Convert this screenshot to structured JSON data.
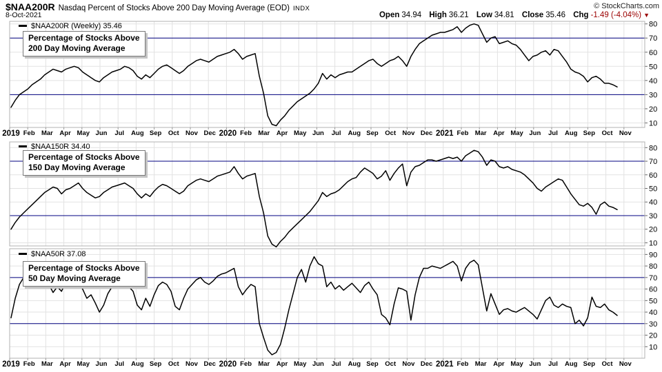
{
  "header": {
    "symbol": "$NAA200R",
    "title": "Nasdaq Percent of Stocks Above 200 Day Moving Average (EOD)",
    "exchange": "INDX",
    "copyright": "© StockCharts.com",
    "date": "8-Oct-2021",
    "quote": {
      "open_label": "Open",
      "open": "34.94",
      "high_label": "High",
      "high": "36.21",
      "low_label": "Low",
      "low": "34.81",
      "close_label": "Close",
      "close": "35.46",
      "chg_label": "Chg",
      "chg": "-1.49 (-4.04%)"
    }
  },
  "colors": {
    "series_line": "#000000",
    "threshold_line": "#000080",
    "grid": "#e2e2e2",
    "panel_border": "#b0b0b0",
    "negative_change": "#9b0000"
  },
  "axis": {
    "months": [
      "2019",
      "Feb",
      "Mar",
      "Apr",
      "May",
      "Jun",
      "Jul",
      "Aug",
      "Sep",
      "Oct",
      "Nov",
      "Dec",
      "2020",
      "Feb",
      "Mar",
      "Apr",
      "May",
      "Jun",
      "Jul",
      "Aug",
      "Sep",
      "Oct",
      "Nov",
      "Dec",
      "2021",
      "Feb",
      "Mar",
      "Apr",
      "May",
      "Jun",
      "Jul",
      "Aug",
      "Sep",
      "Oct",
      "Nov"
    ]
  },
  "chart_data": [
    {
      "type": "line",
      "symbol": "$NAA200R",
      "legend": "$NAA200R (Weekly) 35.46",
      "last_value": 35.46,
      "annotation": [
        "Percentage of Stocks Above",
        "200 Day Moving Average"
      ],
      "yticks": [
        80,
        70,
        60,
        50,
        40,
        30,
        20,
        10
      ],
      "hlines": [
        70,
        30
      ],
      "ylim": [
        6.8,
        81.8
      ],
      "frequency": "weekly",
      "x_start": "Jan-2019",
      "x_end": "8-Oct-2021",
      "values": [
        21,
        26,
        30,
        32,
        34,
        37,
        39,
        41,
        44,
        46,
        48,
        47,
        46,
        48,
        49,
        50,
        49,
        46,
        44,
        42,
        40,
        39,
        42,
        44,
        46,
        47,
        48,
        50,
        49,
        47,
        43,
        41,
        44,
        42,
        45,
        48,
        50,
        51,
        49,
        47,
        45,
        47,
        50,
        52,
        54,
        55,
        54,
        53,
        55,
        57,
        58,
        59,
        60,
        62,
        59,
        55,
        57,
        58,
        59,
        43,
        31,
        15,
        9,
        8,
        12,
        15,
        19,
        22,
        25,
        27,
        29,
        31,
        34,
        38,
        45,
        41,
        44,
        42,
        44,
        45,
        46,
        46,
        48,
        50,
        52,
        54,
        55,
        52,
        50,
        52,
        54,
        55,
        57,
        54,
        50,
        57,
        62,
        66,
        68,
        70,
        72,
        73,
        74,
        74,
        75,
        76,
        78,
        74,
        77,
        79,
        80,
        79,
        73,
        67,
        70,
        71,
        66,
        67,
        68,
        66,
        65,
        62,
        58,
        54,
        57,
        58,
        60,
        61,
        58,
        62,
        61,
        57,
        53,
        48,
        46,
        45,
        43,
        39,
        42,
        43,
        41,
        38,
        38,
        37,
        35.46
      ]
    },
    {
      "type": "line",
      "symbol": "$NAA150R",
      "legend": "$NAA150R 34.40",
      "last_value": 34.4,
      "annotation": [
        "Percentage of Stocks Above",
        "150 Day Moving Average"
      ],
      "yticks": [
        80,
        70,
        60,
        50,
        40,
        30,
        20,
        10
      ],
      "hlines": [
        70,
        30
      ],
      "ylim": [
        7.7,
        84.2
      ],
      "frequency": "weekly",
      "x_start": "Jan-2019",
      "x_end": "8-Oct-2021",
      "values": [
        20,
        25,
        29,
        32,
        35,
        38,
        41,
        44,
        47,
        49,
        51,
        50,
        46,
        49,
        50,
        52,
        54,
        50,
        47,
        45,
        43,
        44,
        47,
        49,
        51,
        52,
        53,
        54,
        52,
        50,
        46,
        43,
        46,
        44,
        48,
        51,
        53,
        52,
        50,
        48,
        46,
        48,
        52,
        54,
        56,
        57,
        56,
        55,
        57,
        59,
        60,
        61,
        62,
        66,
        61,
        57,
        59,
        60,
        61,
        44,
        32,
        15,
        9,
        7,
        11,
        14,
        18,
        21,
        24,
        27,
        30,
        33,
        37,
        41,
        47,
        44,
        46,
        47,
        49,
        52,
        55,
        57,
        58,
        62,
        65,
        63,
        61,
        57,
        59,
        63,
        56,
        61,
        65,
        68,
        52,
        62,
        66,
        67,
        69,
        71,
        71,
        70,
        71,
        72,
        73,
        72,
        73,
        70,
        74,
        76,
        78,
        77,
        73,
        67,
        71,
        70,
        66,
        65,
        66,
        64,
        63,
        62,
        60,
        57,
        54,
        50,
        48,
        51,
        53,
        55,
        57,
        56,
        51,
        46,
        42,
        38,
        37,
        39,
        36,
        31,
        38,
        40,
        37,
        36,
        34.4
      ]
    },
    {
      "type": "line",
      "symbol": "$NAA50R",
      "legend": "$NAA50R 37.08",
      "last_value": 37.08,
      "annotation": [
        "Percentage of Stocks Above",
        "50 Day Moving Average"
      ],
      "yticks": [
        90,
        80,
        70,
        60,
        50,
        40,
        30,
        20,
        10
      ],
      "hlines": [
        70,
        30
      ],
      "ylim": [
        0,
        95
      ],
      "frequency": "weekly",
      "x_start": "Jan-2019",
      "x_end": "8-Oct-2021",
      "values": [
        35,
        52,
        64,
        70,
        72,
        70,
        73,
        75,
        72,
        64,
        57,
        62,
        58,
        66,
        68,
        64,
        66,
        60,
        52,
        55,
        48,
        40,
        46,
        56,
        62,
        66,
        64,
        66,
        62,
        58,
        46,
        42,
        52,
        45,
        55,
        63,
        66,
        64,
        58,
        45,
        42,
        52,
        60,
        64,
        68,
        70,
        66,
        64,
        67,
        71,
        73,
        74,
        76,
        78,
        62,
        55,
        60,
        64,
        62,
        30,
        18,
        7,
        3,
        5,
        12,
        26,
        42,
        56,
        70,
        77,
        66,
        80,
        88,
        82,
        80,
        62,
        66,
        60,
        63,
        59,
        62,
        65,
        61,
        57,
        63,
        66,
        60,
        55,
        38,
        35,
        29,
        47,
        61,
        60,
        58,
        33,
        55,
        70,
        78,
        78,
        80,
        79,
        78,
        80,
        82,
        84,
        80,
        67,
        78,
        83,
        85,
        81,
        61,
        41,
        56,
        47,
        38,
        42,
        43,
        41,
        40,
        42,
        44,
        41,
        38,
        34,
        42,
        50,
        53,
        46,
        44,
        47,
        45,
        44,
        30,
        33,
        28,
        35,
        53,
        45,
        44,
        47,
        42,
        40,
        37.08
      ]
    }
  ]
}
